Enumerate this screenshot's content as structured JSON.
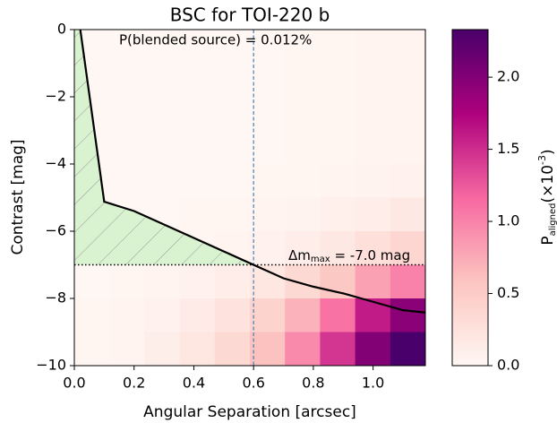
{
  "chart_data": {
    "type": "heatmap",
    "title": "BSC for TOI-220 b",
    "x_label": "Angular Separation [arcsec]",
    "y_label": "Contrast [mag]",
    "colorbar_label": {
      "base": "P",
      "sub": "aligned",
      "mid": "(×10",
      "sup": "-3",
      "end": ")"
    },
    "annotation_p": "P(blended source) = 0.012%",
    "annotation_dm": {
      "base": "Δm",
      "sub": "max",
      "rest": " = -7.0 mag"
    },
    "delta_m_max": -7.0,
    "separation": 0.6,
    "xlim": [
      0,
      1.175
    ],
    "ylim": [
      -10,
      0
    ],
    "clim": [
      0,
      2.33
    ],
    "xticks": [
      {
        "value": 0,
        "label": "0.0"
      },
      0.2,
      0.4,
      0.6,
      0.8,
      {
        "value": 1.0,
        "label": "1.0"
      }
    ],
    "yticks": [
      0,
      {
        "value": -2,
        "label": "−2"
      },
      {
        "value": -4,
        "label": "−4"
      },
      {
        "value": -6,
        "label": "−6"
      },
      {
        "value": -8,
        "label": "−8"
      },
      {
        "value": -10,
        "label": "−10"
      }
    ],
    "cticks": [
      {
        "value": 0,
        "label": "0.0"
      },
      0.5,
      {
        "value": 1.0,
        "label": "1.0"
      },
      1.5,
      {
        "value": 2.0,
        "label": "2.0"
      }
    ],
    "colormap": [
      "#fff7f3",
      "#fcc5c0",
      "#f768a1",
      "#ae017e",
      "#49006a"
    ],
    "x_edges": [
      0,
      0.1175,
      0.235,
      0.3525,
      0.47,
      0.5875,
      0.705,
      0.8225,
      0.94,
      1.0575,
      1.175
    ],
    "y_edges": [
      0,
      -1,
      -2,
      -3,
      -4,
      -5,
      -6,
      -7,
      -8,
      -9,
      -10
    ],
    "values": [
      [
        0,
        0,
        0,
        0,
        0,
        0,
        0.01,
        0.02,
        0.03,
        0.04
      ],
      [
        0,
        0,
        0,
        0,
        0,
        0,
        0.01,
        0.02,
        0.03,
        0.04
      ],
      [
        0,
        0,
        0,
        0,
        0,
        0,
        0.01,
        0.02,
        0.03,
        0.04
      ],
      [
        0,
        0,
        0,
        0,
        0,
        0,
        0.01,
        0.02,
        0.03,
        0.04
      ],
      [
        0,
        0,
        0,
        0,
        0,
        0.01,
        0.02,
        0.03,
        0.05,
        0.07
      ],
      [
        0,
        0,
        0,
        0.01,
        0.02,
        0.03,
        0.05,
        0.08,
        0.12,
        0.18
      ],
      [
        0,
        0,
        0.01,
        0.02,
        0.04,
        0.07,
        0.12,
        0.18,
        0.28,
        0.38
      ],
      [
        0,
        0.01,
        0.03,
        0.06,
        0.12,
        0.2,
        0.35,
        0.55,
        0.8,
        1.0
      ],
      [
        0.01,
        0.03,
        0.07,
        0.14,
        0.25,
        0.42,
        0.7,
        1.1,
        1.6,
        1.95
      ],
      [
        0.01,
        0.04,
        0.1,
        0.2,
        0.35,
        0.6,
        0.95,
        1.45,
        2.0,
        2.33
      ]
    ],
    "curve": {
      "x": [
        0.02,
        0.1,
        0.2,
        0.3,
        0.4,
        0.5,
        0.6,
        0.7,
        0.8,
        0.9,
        1.0,
        1.1,
        1.175
      ],
      "y": [
        0,
        -5.12,
        -5.4,
        -5.8,
        -6.2,
        -6.6,
        -7.0,
        -7.4,
        -7.65,
        -7.85,
        -8.1,
        -8.35,
        -8.42
      ],
      "color": "#000000"
    },
    "fill_color": "#d9f2d0"
  }
}
